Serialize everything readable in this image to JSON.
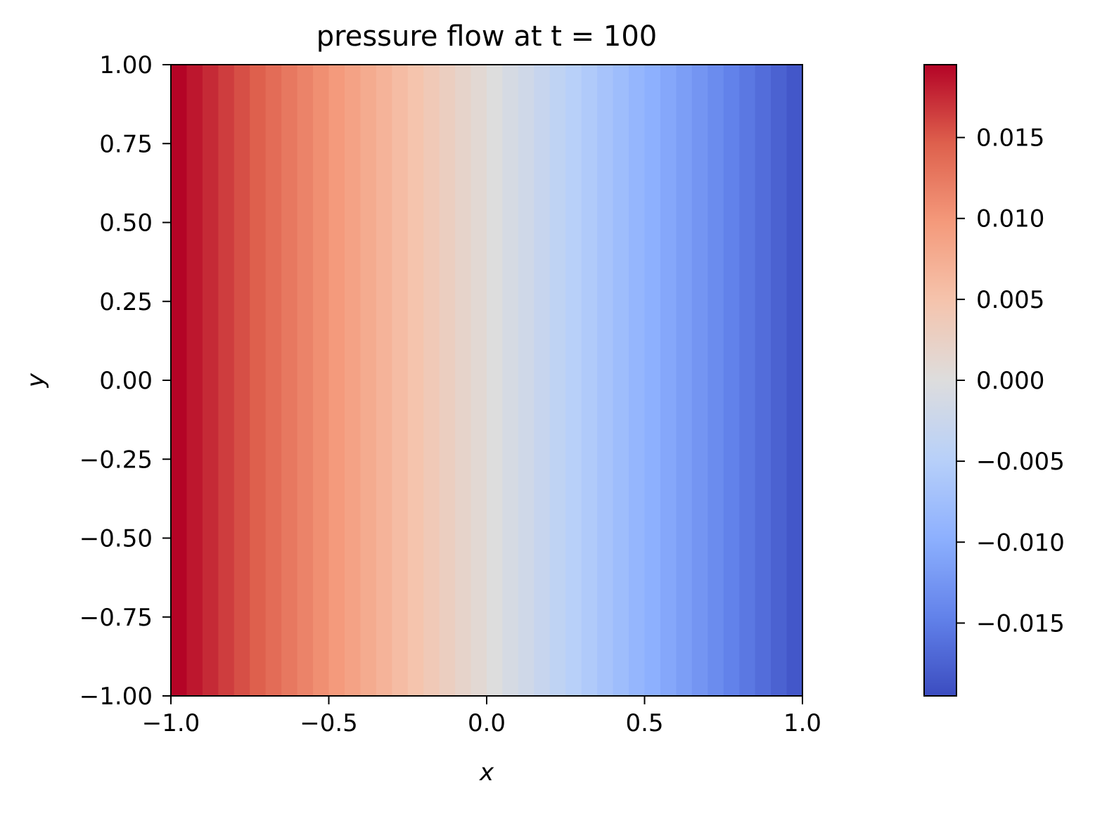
{
  "chart_data": {
    "type": "heatmap",
    "title": "pressure flow at t = 100",
    "xlabel": "x",
    "ylabel": "y",
    "xlim": [
      -1.0,
      1.0
    ],
    "ylim": [
      -1.0,
      1.0
    ],
    "x_ticks": [
      "−1.0",
      "−0.5",
      "0.0",
      "0.5",
      "1.0"
    ],
    "x_tick_values": [
      -1.0,
      -0.5,
      0.0,
      0.5,
      1.0
    ],
    "y_ticks": [
      "−1.00",
      "−0.75",
      "−0.50",
      "−0.25",
      "0.00",
      "0.25",
      "0.50",
      "0.75",
      "1.00"
    ],
    "y_tick_values": [
      -1.0,
      -0.75,
      -0.5,
      -0.25,
      0.0,
      0.25,
      0.5,
      0.75,
      1.0
    ],
    "colormap": "coolwarm",
    "colorbar": {
      "range": [
        -0.0195,
        0.0195
      ],
      "ticks": [
        "−0.015",
        "−0.010",
        "−0.005",
        "0.000",
        "0.005",
        "0.010",
        "0.015"
      ],
      "tick_values": [
        -0.015,
        -0.01,
        -0.005,
        0.0,
        0.005,
        0.01,
        0.015
      ]
    },
    "field": {
      "description_of_variation": "varies along x only",
      "x_grid": [
        -1.0,
        -0.95,
        -0.9,
        -0.85,
        -0.8,
        -0.75,
        -0.7,
        -0.65,
        -0.6,
        -0.55,
        -0.5,
        -0.45,
        -0.4,
        -0.35,
        -0.3,
        -0.25,
        -0.2,
        -0.15,
        -0.1,
        -0.05,
        0.0,
        0.05,
        0.1,
        0.15,
        0.2,
        0.25,
        0.3,
        0.35,
        0.4,
        0.45,
        0.5,
        0.55,
        0.6,
        0.65,
        0.7,
        0.75,
        0.8,
        0.85,
        0.9,
        0.95
      ],
      "values": [
        0.0195,
        0.0185,
        0.0175,
        0.0165,
        0.0155,
        0.0146,
        0.0136,
        0.0126,
        0.0117,
        0.0107,
        0.0097,
        0.0088,
        0.0078,
        0.0068,
        0.0058,
        0.0049,
        0.0039,
        0.0029,
        0.0019,
        0.001,
        0.0,
        -0.001,
        -0.0019,
        -0.0029,
        -0.0039,
        -0.0049,
        -0.0058,
        -0.0068,
        -0.0078,
        -0.0088,
        -0.0097,
        -0.0107,
        -0.0117,
        -0.0126,
        -0.0136,
        -0.0146,
        -0.0155,
        -0.0165,
        -0.0175,
        -0.0185
      ]
    }
  }
}
